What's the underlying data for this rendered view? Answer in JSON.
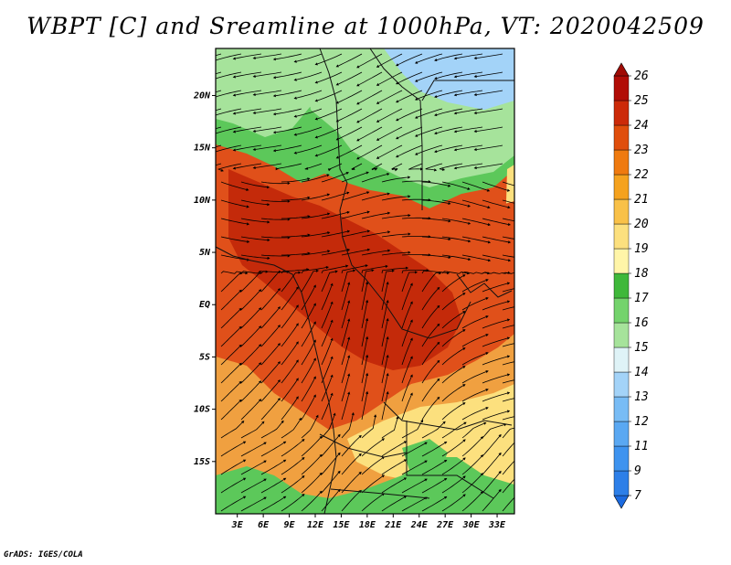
{
  "title": "WBPT [C] and Sreamline at 1000hPa, VT: 2020042509",
  "credit": "GrADS: IGES/COLA",
  "map": {
    "variable": "Wet-bulb potential temperature",
    "units": "C",
    "level": "1000hPa",
    "valid_time": "2020042509",
    "lat_ticks": [
      "20N",
      "15N",
      "10N",
      "5N",
      "EQ",
      "5S",
      "10S",
      "15S"
    ],
    "lat_values": [
      20,
      15,
      10,
      5,
      0,
      -5,
      -10,
      -15
    ],
    "lon_ticks": [
      "3E",
      "6E",
      "9E",
      "12E",
      "15E",
      "18E",
      "21E",
      "24E",
      "27E",
      "30E",
      "33E"
    ],
    "lon_values": [
      3,
      6,
      9,
      12,
      15,
      18,
      21,
      24,
      27,
      30,
      33
    ]
  },
  "colorbar": {
    "levels": [
      "7",
      "9",
      "11",
      "12",
      "13",
      "14",
      "15",
      "16",
      "17",
      "18",
      "19",
      "20",
      "21",
      "22",
      "23",
      "24",
      "25",
      "26"
    ],
    "colors": [
      "#1c6be0",
      "#2d7fe8",
      "#3e93ef",
      "#5aa8f2",
      "#78bcf5",
      "#a3d3f8",
      "#dff3f7",
      "#a6e39b",
      "#74d36c",
      "#3fb83a",
      "#fff5a8",
      "#fce07e",
      "#f9c148",
      "#f5a21e",
      "#ef7a0f",
      "#e04e0c",
      "#cc2a09",
      "#b10d07",
      "#a00b05"
    ]
  },
  "region_colors": {
    "very_hot": "#c42a0a",
    "hot": "#e0501a",
    "warm": "#f0a040",
    "mild": "#fce07e",
    "green": "#5cc85a",
    "light_green": "#a6e39b",
    "cool": "#a3d3f8",
    "cold": "#78bcf5"
  }
}
